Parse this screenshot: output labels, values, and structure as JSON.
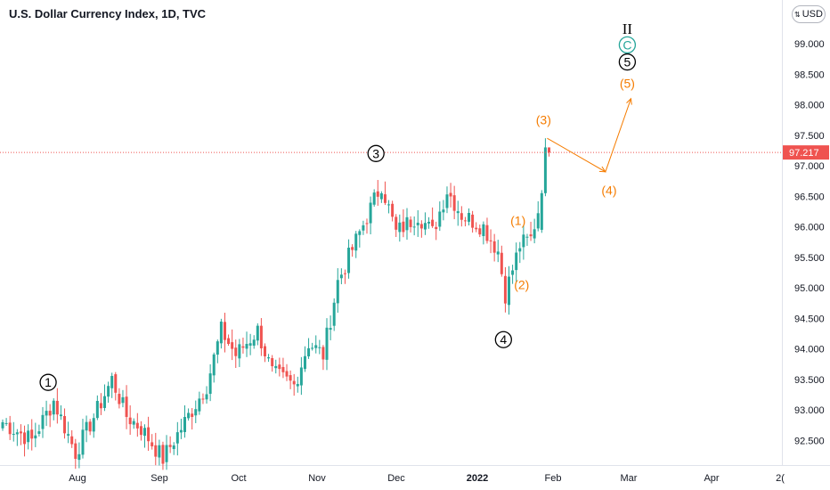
{
  "title": "U.S. Dollar Currency Index, 1D, TVC",
  "currency_button": "USD",
  "chart_data": {
    "type": "candlestick",
    "y_ticks": [
      92.5,
      93.0,
      93.5,
      94.0,
      94.5,
      95.0,
      95.5,
      96.0,
      96.5,
      97.0,
      97.5,
      98.0,
      98.5,
      99.0
    ],
    "y_tick_labels": [
      "92.500",
      "93.000",
      "93.500",
      "94.000",
      "94.500",
      "95.000",
      "95.500",
      "96.000",
      "96.500",
      "97.000",
      "97.500",
      "98.000",
      "98.500",
      "99.000"
    ],
    "x_tick_labels": [
      "Aug",
      "Sep",
      "Oct",
      "Nov",
      "Dec",
      "2022",
      "Feb",
      "Mar",
      "Apr",
      "2("
    ],
    "last_price": 97.217,
    "last_price_label": "97.217",
    "colors": {
      "up": "#26a69a",
      "down": "#ef5350",
      "projection": "#f57c00",
      "black": "#000000",
      "teal": "#26a69a"
    },
    "anchors": [
      {
        "i": 0,
        "v": 92.8
      },
      {
        "i": 8,
        "v": 92.5
      },
      {
        "i": 14,
        "v": 93.15
      },
      {
        "i": 20,
        "v": 92.3
      },
      {
        "i": 26,
        "v": 93.0
      },
      {
        "i": 30,
        "v": 93.5
      },
      {
        "i": 34,
        "v": 92.9
      },
      {
        "i": 38,
        "v": 92.7
      },
      {
        "i": 44,
        "v": 92.2
      },
      {
        "i": 50,
        "v": 92.8
      },
      {
        "i": 56,
        "v": 93.4
      },
      {
        "i": 60,
        "v": 94.3
      },
      {
        "i": 64,
        "v": 93.9
      },
      {
        "i": 70,
        "v": 94.3
      },
      {
        "i": 74,
        "v": 93.6
      },
      {
        "i": 80,
        "v": 93.4
      },
      {
        "i": 84,
        "v": 94.1
      },
      {
        "i": 88,
        "v": 93.9
      },
      {
        "i": 92,
        "v": 95.1
      },
      {
        "i": 98,
        "v": 95.9
      },
      {
        "i": 104,
        "v": 96.7
      },
      {
        "i": 108,
        "v": 95.9
      },
      {
        "i": 114,
        "v": 96.2
      },
      {
        "i": 118,
        "v": 95.9
      },
      {
        "i": 122,
        "v": 96.6
      },
      {
        "i": 126,
        "v": 96.2
      },
      {
        "i": 132,
        "v": 96.0
      },
      {
        "i": 136,
        "v": 95.6
      },
      {
        "i": 138,
        "v": 94.9
      },
      {
        "i": 142,
        "v": 95.7
      },
      {
        "i": 145,
        "v": 95.8
      },
      {
        "i": 148,
        "v": 96.5
      },
      {
        "i": 150,
        "v": 97.217
      }
    ],
    "wave_labels": [
      {
        "text": "1",
        "style": "circle",
        "price": 93.45,
        "x_index": 12
      },
      {
        "text": "3",
        "style": "circle",
        "price": 97.2,
        "x_index": 102
      },
      {
        "text": "4",
        "style": "circle",
        "price": 94.15,
        "x_index": 137
      },
      {
        "text": "5",
        "style": "circle",
        "price": 98.7,
        "x_index": 171
      },
      {
        "text": "C",
        "style": "circle-teal",
        "price": 98.98,
        "x_index": 171
      },
      {
        "text": "II",
        "style": "roman",
        "price": 99.25,
        "x_index": 171
      },
      {
        "text": "(1)",
        "style": "orange",
        "price": 96.1,
        "x_index": 141
      },
      {
        "text": "(2)",
        "style": "orange",
        "price": 95.05,
        "x_index": 142
      },
      {
        "text": "(3)",
        "style": "orange",
        "price": 97.75,
        "x_index": 148
      },
      {
        "text": "(4)",
        "style": "orange",
        "price": 96.6,
        "x_index": 166
      },
      {
        "text": "(5)",
        "style": "orange",
        "price": 98.35,
        "x_index": 171
      }
    ],
    "projection": [
      {
        "x_index": 149,
        "price": 97.45
      },
      {
        "x_index": 165,
        "price": 96.9
      },
      {
        "x_index": 172,
        "price": 98.1
      }
    ]
  }
}
